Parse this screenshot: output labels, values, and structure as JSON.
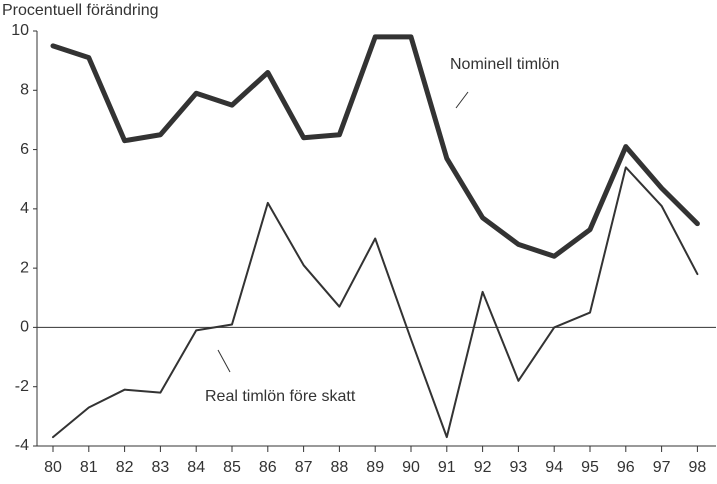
{
  "chart_data": {
    "type": "line",
    "y_axis_label": "Procentuell förändring",
    "categories": [
      "80",
      "81",
      "82",
      "83",
      "84",
      "85",
      "86",
      "87",
      "88",
      "89",
      "90",
      "91",
      "92",
      "93",
      "94",
      "95",
      "96",
      "97",
      "98"
    ],
    "series": [
      {
        "name": "Nominell timlön",
        "color": "#333333",
        "width": 5,
        "values": [
          9.5,
          9.1,
          6.3,
          6.5,
          7.9,
          7.5,
          8.6,
          6.4,
          6.5,
          9.8,
          9.8,
          5.7,
          3.7,
          2.8,
          2.4,
          3.3,
          6.1,
          4.7,
          3.5
        ]
      },
      {
        "name": "Real timlön före skatt",
        "color": "#333333",
        "width": 2,
        "values": [
          -3.7,
          -2.7,
          -2.1,
          -2.2,
          -0.1,
          0.1,
          4.2,
          2.1,
          0.7,
          3.0,
          -0.4,
          -3.7,
          1.2,
          -1.8,
          0.0,
          0.5,
          5.4,
          4.1,
          1.8
        ]
      }
    ],
    "ylim": [
      -4,
      10
    ],
    "yticks": [
      -4,
      -2,
      0,
      2,
      4,
      6,
      8,
      10
    ]
  }
}
